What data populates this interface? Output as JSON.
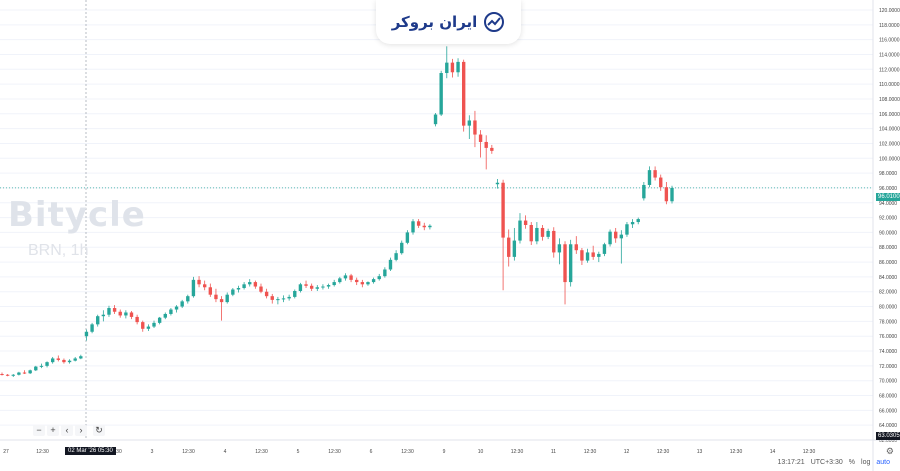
{
  "brand": {
    "logo_text": "ایران بروکر"
  },
  "watermark": {
    "name": "Bitycle",
    "symbol": "BRN, 1h"
  },
  "crosshair": {
    "time_label": "02 Mar '26   05:30",
    "price_label": "63.0305"
  },
  "last_price": {
    "label": "96.0100",
    "value": 96.01
  },
  "nav_buttons": {
    "minus": "−",
    "plus": "+",
    "left": "‹",
    "right": "›",
    "reset": "↻"
  },
  "status": {
    "time": "13:17:21",
    "tz": "UTC+3:30",
    "pct": "%",
    "log": "log",
    "auto": "auto"
  },
  "colors": {
    "up": "#26a69a",
    "down": "#ef5350",
    "grid": "#f0f3fa",
    "last_line": "#26a69a"
  },
  "chart_data": {
    "type": "candlestick",
    "ylim": [
      62,
      120
    ],
    "y_ticks": [
      "120.0000",
      "118.0000",
      "116.0000",
      "114.0000",
      "112.0000",
      "110.0000",
      "108.0000",
      "106.0000",
      "104.0000",
      "102.0000",
      "100.0000",
      "98.0000",
      "96.0000",
      "94.0000",
      "92.0000",
      "90.0000",
      "88.0000",
      "86.0000",
      "84.0000",
      "82.0000",
      "80.0000",
      "78.0000",
      "76.0000",
      "74.0000",
      "72.0000",
      "70.0000",
      "68.0000",
      "66.0000",
      "64.0000",
      "62.0000"
    ],
    "x_ticks": [
      "27",
      "12:30",
      "2",
      "12:30",
      "3",
      "12:30",
      "4",
      "12:30",
      "5",
      "12:30",
      "6",
      "12:30",
      "9",
      "10",
      "12:30",
      "11",
      "12:30",
      "12",
      "12:30",
      "13",
      "12:30",
      "14",
      "12:30"
    ],
    "candles": [
      [
        70.9,
        71.1,
        70.7,
        70.8
      ],
      [
        70.8,
        70.9,
        70.6,
        70.7
      ],
      [
        70.7,
        70.9,
        70.5,
        70.8
      ],
      [
        70.8,
        71.2,
        70.7,
        71.1
      ],
      [
        71.1,
        71.4,
        70.9,
        71.0
      ],
      [
        71.0,
        71.5,
        70.9,
        71.4
      ],
      [
        71.4,
        72.0,
        71.3,
        71.9
      ],
      [
        71.9,
        72.3,
        71.7,
        72.0
      ],
      [
        72.0,
        72.6,
        71.8,
        72.5
      ],
      [
        72.5,
        73.2,
        72.3,
        73.0
      ],
      [
        73.0,
        73.4,
        72.6,
        72.8
      ],
      [
        72.8,
        73.0,
        72.3,
        72.5
      ],
      [
        72.5,
        72.9,
        72.3,
        72.7
      ],
      [
        72.7,
        73.2,
        72.6,
        73.0
      ],
      [
        73.0,
        73.5,
        72.9,
        73.3
      ],
      [
        76.0,
        76.9,
        75.4,
        76.6
      ],
      [
        76.6,
        77.8,
        76.4,
        77.6
      ],
      [
        77.6,
        78.9,
        77.3,
        78.7
      ],
      [
        78.7,
        79.5,
        78.0,
        78.9
      ],
      [
        78.9,
        80.1,
        78.6,
        79.8
      ],
      [
        79.8,
        80.2,
        79.0,
        79.3
      ],
      [
        79.3,
        79.6,
        78.5,
        78.8
      ],
      [
        78.8,
        79.5,
        78.4,
        79.2
      ],
      [
        79.2,
        79.4,
        78.3,
        78.6
      ],
      [
        78.6,
        78.9,
        77.6,
        77.9
      ],
      [
        77.9,
        78.1,
        76.6,
        77.0
      ],
      [
        77.0,
        77.6,
        76.7,
        77.3
      ],
      [
        77.3,
        78.1,
        77.1,
        77.8
      ],
      [
        77.8,
        78.6,
        77.6,
        78.5
      ],
      [
        78.5,
        79.2,
        78.3,
        79.0
      ],
      [
        79.0,
        79.8,
        78.8,
        79.6
      ],
      [
        79.6,
        80.2,
        79.2,
        80.0
      ],
      [
        80.0,
        80.9,
        79.8,
        80.7
      ],
      [
        80.7,
        81.6,
        80.4,
        81.4
      ],
      [
        81.4,
        84.0,
        81.2,
        83.6
      ],
      [
        83.6,
        84.1,
        82.6,
        83.0
      ],
      [
        83.0,
        83.5,
        82.2,
        82.6
      ],
      [
        82.6,
        83.1,
        81.3,
        81.6
      ],
      [
        81.6,
        82.4,
        80.6,
        81.0
      ],
      [
        81.0,
        81.4,
        78.1,
        80.6
      ],
      [
        80.6,
        81.9,
        80.4,
        81.6
      ],
      [
        81.6,
        82.5,
        81.4,
        82.3
      ],
      [
        82.3,
        82.8,
        81.9,
        82.5
      ],
      [
        82.5,
        83.3,
        82.3,
        83.0
      ],
      [
        83.0,
        83.7,
        82.7,
        83.3
      ],
      [
        83.3,
        83.5,
        82.4,
        82.7
      ],
      [
        82.7,
        83.1,
        81.8,
        82.0
      ],
      [
        82.0,
        82.4,
        81.1,
        81.4
      ],
      [
        81.4,
        81.7,
        80.4,
        80.9
      ],
      [
        80.9,
        81.3,
        80.3,
        81.0
      ],
      [
        81.0,
        81.5,
        80.6,
        81.1
      ],
      [
        81.1,
        81.6,
        80.8,
        81.3
      ],
      [
        81.3,
        82.3,
        81.1,
        82.1
      ],
      [
        82.1,
        83.2,
        81.9,
        83.0
      ],
      [
        83.0,
        83.5,
        82.5,
        82.8
      ],
      [
        82.8,
        83.1,
        82.1,
        82.4
      ],
      [
        82.4,
        82.9,
        82.1,
        82.6
      ],
      [
        82.6,
        83.0,
        82.3,
        82.7
      ],
      [
        82.7,
        83.1,
        82.4,
        82.9
      ],
      [
        82.9,
        83.6,
        82.7,
        83.3
      ],
      [
        83.3,
        84.0,
        83.1,
        83.8
      ],
      [
        83.8,
        84.5,
        83.5,
        84.2
      ],
      [
        84.2,
        84.4,
        83.3,
        83.6
      ],
      [
        83.6,
        83.9,
        82.9,
        83.3
      ],
      [
        83.3,
        83.6,
        82.6,
        83.0
      ],
      [
        83.0,
        83.4,
        82.8,
        83.3
      ],
      [
        83.3,
        83.9,
        83.1,
        83.7
      ],
      [
        83.7,
        84.4,
        83.5,
        84.1
      ],
      [
        84.1,
        85.3,
        83.9,
        85.0
      ],
      [
        85.0,
        86.6,
        84.8,
        86.3
      ],
      [
        86.3,
        87.6,
        86.1,
        87.2
      ],
      [
        87.2,
        88.9,
        87.0,
        88.6
      ],
      [
        88.6,
        90.3,
        88.4,
        90.0
      ],
      [
        90.0,
        91.8,
        89.7,
        91.5
      ],
      [
        91.5,
        91.8,
        90.6,
        90.9
      ],
      [
        90.9,
        91.3,
        90.3,
        90.7
      ],
      [
        90.7,
        91.1,
        90.4,
        90.9
      ],
      [
        104.6,
        106.1,
        104.3,
        105.9
      ],
      [
        105.9,
        111.8,
        105.7,
        111.5
      ],
      [
        111.5,
        115.1,
        110.8,
        112.9
      ],
      [
        112.9,
        113.4,
        110.9,
        111.6
      ],
      [
        111.6,
        113.5,
        111.0,
        113.0
      ],
      [
        113.0,
        113.3,
        103.6,
        104.4
      ],
      [
        104.4,
        105.8,
        102.6,
        105.1
      ],
      [
        105.1,
        106.4,
        101.5,
        103.2
      ],
      [
        103.2,
        103.8,
        100.1,
        102.2
      ],
      [
        102.2,
        103.1,
        98.5,
        101.4
      ],
      [
        101.4,
        101.8,
        100.6,
        101.0
      ],
      [
        96.5,
        97.2,
        95.9,
        96.7
      ],
      [
        96.7,
        97.1,
        82.2,
        89.3
      ],
      [
        89.3,
        90.4,
        85.4,
        86.7
      ],
      [
        86.7,
        90.6,
        86.2,
        88.9
      ],
      [
        88.9,
        92.6,
        88.5,
        91.6
      ],
      [
        91.6,
        92.3,
        90.5,
        91.0
      ],
      [
        91.0,
        91.4,
        88.3,
        88.8
      ],
      [
        88.8,
        91.4,
        88.4,
        90.6
      ],
      [
        90.6,
        91.0,
        88.9,
        89.4
      ],
      [
        89.4,
        90.5,
        89.1,
        90.2
      ],
      [
        90.2,
        90.7,
        86.6,
        87.3
      ],
      [
        87.3,
        89.2,
        85.7,
        88.4
      ],
      [
        88.4,
        88.8,
        80.3,
        83.3
      ],
      [
        83.3,
        89.0,
        82.7,
        88.4
      ],
      [
        88.4,
        89.5,
        87.1,
        87.6
      ],
      [
        87.6,
        87.9,
        85.6,
        86.2
      ],
      [
        86.2,
        87.8,
        85.9,
        87.3
      ],
      [
        87.3,
        88.2,
        86.3,
        86.7
      ],
      [
        86.7,
        87.4,
        86.0,
        87.1
      ],
      [
        87.1,
        88.6,
        86.8,
        88.4
      ],
      [
        88.4,
        90.4,
        88.1,
        90.1
      ],
      [
        90.1,
        90.6,
        88.6,
        89.2
      ],
      [
        89.2,
        90.3,
        85.8,
        89.7
      ],
      [
        89.7,
        91.4,
        89.4,
        91.1
      ],
      [
        91.1,
        91.8,
        90.6,
        91.4
      ],
      [
        91.4,
        92.0,
        91.1,
        91.8
      ],
      [
        94.6,
        96.8,
        94.3,
        96.4
      ],
      [
        96.4,
        98.9,
        96.1,
        98.4
      ],
      [
        98.4,
        98.9,
        97.0,
        97.4
      ],
      [
        97.4,
        97.8,
        95.6,
        96.1
      ],
      [
        96.1,
        96.8,
        93.8,
        94.2
      ],
      [
        94.2,
        96.3,
        93.9,
        96.0
      ]
    ]
  }
}
